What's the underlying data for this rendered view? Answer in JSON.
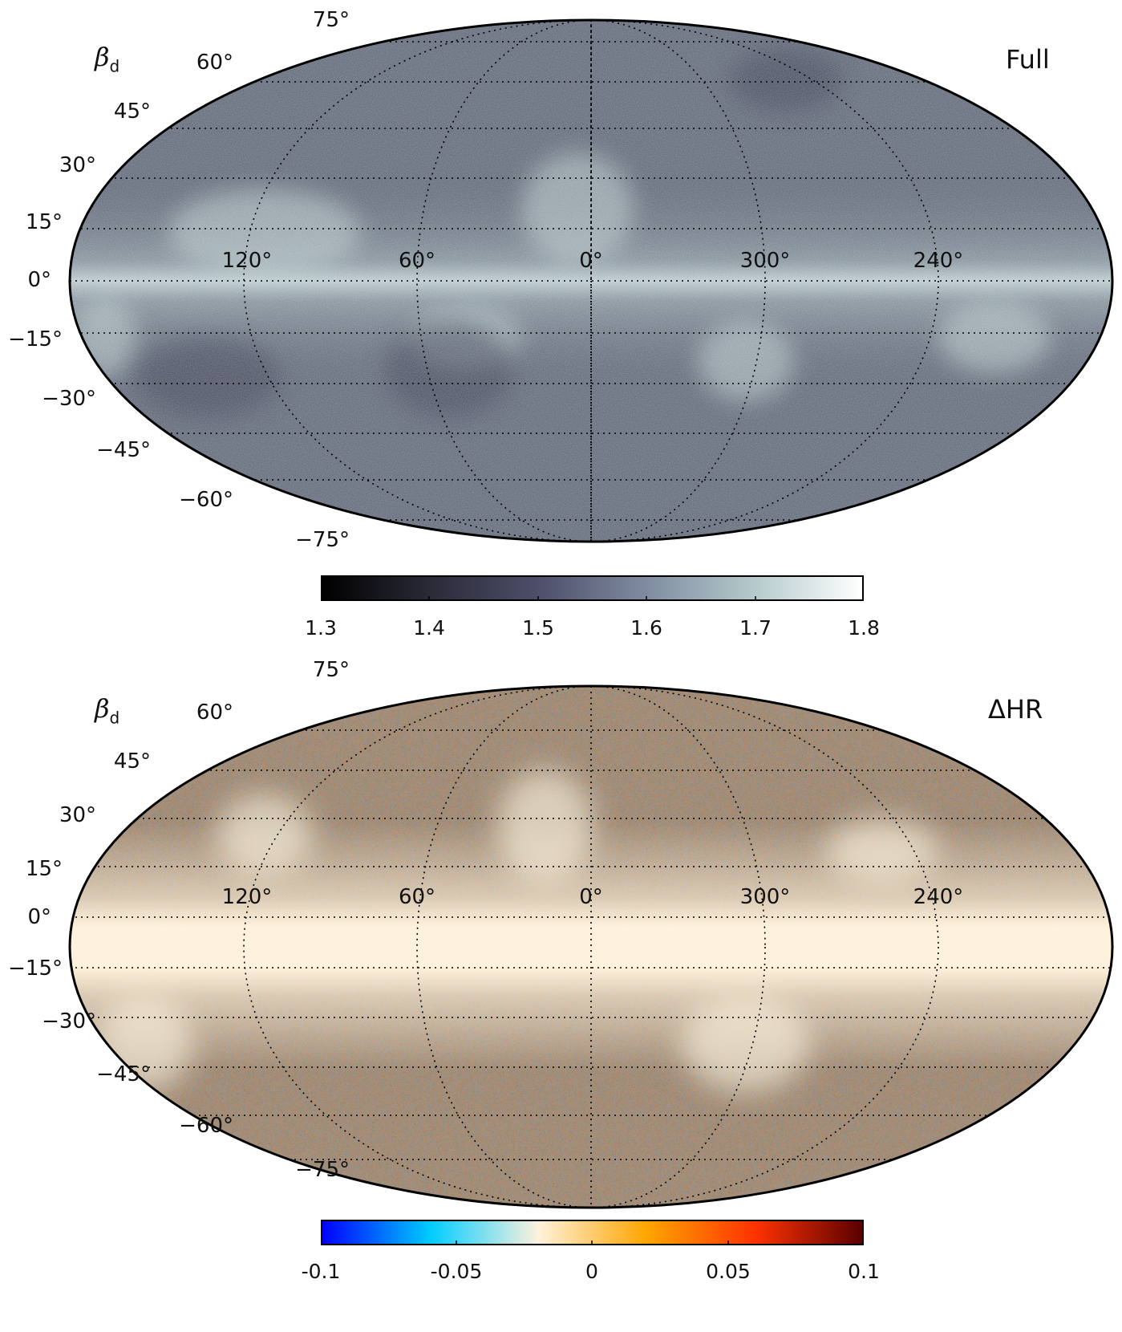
{
  "panels": [
    {
      "symbol": "β",
      "symbol_sub": "d",
      "tag": "Full",
      "lat_labels": [
        "75°",
        "60°",
        "45°",
        "30°",
        "15°",
        "0°",
        "−15°",
        "−30°",
        "−45°",
        "−60°",
        "−75°"
      ],
      "lon_labels": [
        "120°",
        "60°",
        "0°",
        "300°",
        "240°"
      ],
      "colorbar": {
        "ticks": [
          "1.3",
          "1.4",
          "1.5",
          "1.6",
          "1.7",
          "1.8"
        ],
        "colors": [
          "#000000",
          "#2a2a38",
          "#4e4e6a",
          "#7f8ca0",
          "#b5cacc",
          "#ffffff"
        ]
      }
    },
    {
      "symbol": "β",
      "symbol_sub": "d",
      "tag": "ΔHR",
      "lat_labels": [
        "75°",
        "60°",
        "45°",
        "30°",
        "15°",
        "0°",
        "−15°",
        "−30°",
        "−45°",
        "−60°",
        "−75°"
      ],
      "lon_labels": [
        "120°",
        "60°",
        "0°",
        "300°",
        "240°"
      ],
      "colorbar": {
        "ticks": [
          "-0.1",
          "-0.05",
          "0",
          "0.05",
          "0.1"
        ],
        "colors": [
          "#0000ff",
          "#00ccff",
          "#fff2dc",
          "#ffa500",
          "#ff3300",
          "#5a0000"
        ]
      }
    }
  ]
}
